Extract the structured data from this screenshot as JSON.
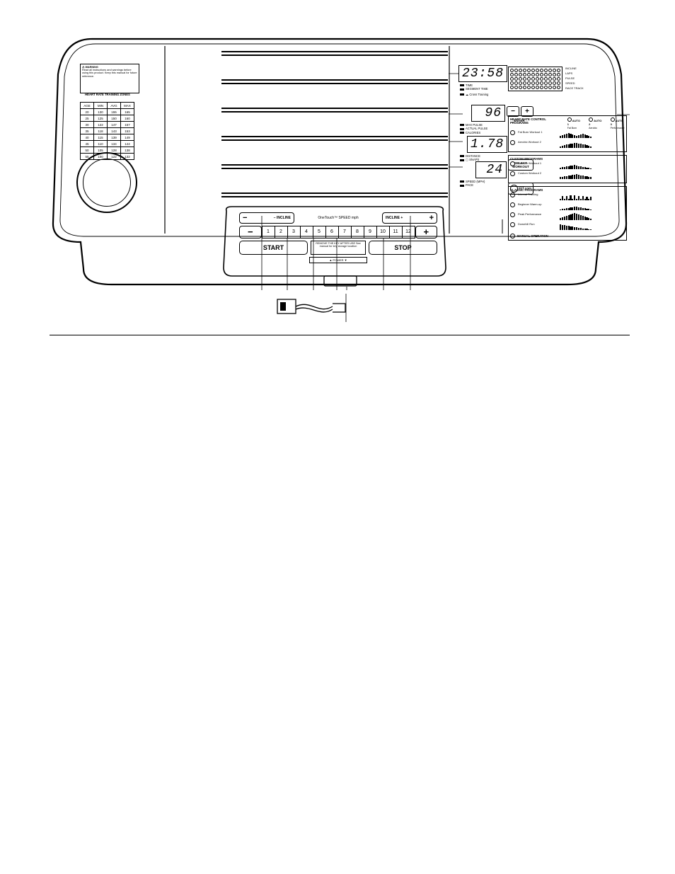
{
  "colors": {
    "stroke": "#000000",
    "bg": "#ffffff"
  },
  "warning": {
    "title": "⚠ WARNING",
    "text": "Read all instructions and warnings before using this product. Keep this manual for future reference."
  },
  "hr_table": {
    "title": "HEART RATE TRAINING ZONES",
    "columns": [
      "AGE",
      "MIN",
      "AVG",
      "MAX"
    ],
    "rows": [
      [
        "20",
        "130",
        "155",
        "165"
      ],
      [
        "25",
        "125",
        "150",
        "160"
      ],
      [
        "30",
        "122",
        "147",
        "157"
      ],
      [
        "35",
        "118",
        "143",
        "153"
      ],
      [
        "40",
        "115",
        "139",
        "149"
      ],
      [
        "45",
        "110",
        "134",
        "144"
      ],
      [
        "50",
        "105",
        "128",
        "138"
      ],
      [
        "55",
        "100",
        "122",
        "132"
      ]
    ]
  },
  "readouts": {
    "time": {
      "value": "23:58",
      "labels": [
        "TIME",
        "SEGMENT TIME"
      ],
      "cross": "Cross Training"
    },
    "pulse": {
      "value": "96",
      "labels": [
        "MAX PULSE",
        "ACTUAL PULSE",
        "CALORIES"
      ]
    },
    "dist": {
      "value": "1.78",
      "labels": [
        "DISTANCE"
      ],
      "snaps": "SNAPS"
    },
    "speed": {
      "value": "24",
      "labels": [
        "SPEED (MPH)",
        "PACE"
      ]
    }
  },
  "right_small_buttons": {
    "minus": "−",
    "plus": "+",
    "enter": "ENTER",
    "select_workout": "SELECT WORKOUT",
    "ifit": "iFIT.com"
  },
  "matrix": {
    "rows": 5,
    "cols": 12,
    "row_labels": [
      "INCLINE",
      "LAPS",
      "PULSE",
      "SPEED",
      "RACE TRACK"
    ]
  },
  "prog_sections": {
    "hrc": {
      "title": "HEART RATE CONTROL PROGRAMS",
      "hdrs": [
        "AUTO 1",
        "AUTO 2",
        "AUTO 3"
      ],
      "subs": [
        "Fat Burn",
        "Aerobic",
        "Performance"
      ],
      "items": [
        {
          "label": "Fat Burn Workout 1",
          "bars": [
            3,
            4,
            5,
            6,
            7,
            6,
            5,
            4,
            3,
            4,
            5,
            6,
            5,
            4,
            3,
            2
          ]
        },
        {
          "label": "Aerobic Workout 2",
          "bars": [
            2,
            3,
            4,
            5,
            5,
            6,
            6,
            7,
            7,
            6,
            6,
            5,
            5,
            4,
            3,
            2
          ]
        }
      ]
    },
    "custom": {
      "title": "CUSTOM PROGRAMS",
      "items": [
        {
          "label": "Custom Workout 1",
          "bars": [
            2,
            3,
            3,
            4,
            4,
            5,
            5,
            6,
            5,
            4,
            4,
            3,
            3,
            2,
            2,
            1
          ]
        },
        {
          "label": "Custom Workout 2",
          "bars": [
            3,
            3,
            4,
            4,
            5,
            5,
            6,
            6,
            7,
            6,
            5,
            5,
            4,
            4,
            3,
            3
          ]
        }
      ]
    },
    "classic": {
      "title": "CLASSIC PROGRAMS",
      "items": [
        {
          "label": "Interval Training",
          "bars": [
            2,
            6,
            2,
            6,
            2,
            7,
            2,
            7,
            2,
            6,
            2,
            6,
            2,
            5,
            2,
            5
          ]
        },
        {
          "label": "Beginner Warm-up",
          "bars": [
            1,
            2,
            2,
            3,
            3,
            4,
            4,
            5,
            5,
            4,
            4,
            3,
            3,
            2,
            2,
            1
          ]
        },
        {
          "label": "Peak Performance",
          "bars": [
            3,
            4,
            5,
            6,
            7,
            8,
            9,
            10,
            9,
            8,
            7,
            6,
            5,
            4,
            3,
            2
          ]
        },
        {
          "label": "Downhill Run",
          "bars": [
            8,
            7,
            7,
            6,
            6,
            5,
            5,
            4,
            4,
            3,
            3,
            2,
            2,
            2,
            1,
            1
          ]
        }
      ],
      "manual": "MANUAL OPERATION"
    }
  },
  "main_buttons": {
    "incline_down": "− INCLINE",
    "incline_up": "INCLINE +",
    "speed_header": "OneTouch™ SPEED mph",
    "speed_minus": "−",
    "speed_plus": "+",
    "speed_nums": [
      "1",
      "2",
      "3",
      "4",
      "5",
      "6",
      "7",
      "8",
      "9",
      "10",
      "11",
      "12"
    ],
    "start": "START",
    "stop": "STOP",
    "mid_text": "REMOVE THE KEY AFTER USE\nSee manual for key storage location",
    "power_strip": "▲  POWER  ▼"
  }
}
